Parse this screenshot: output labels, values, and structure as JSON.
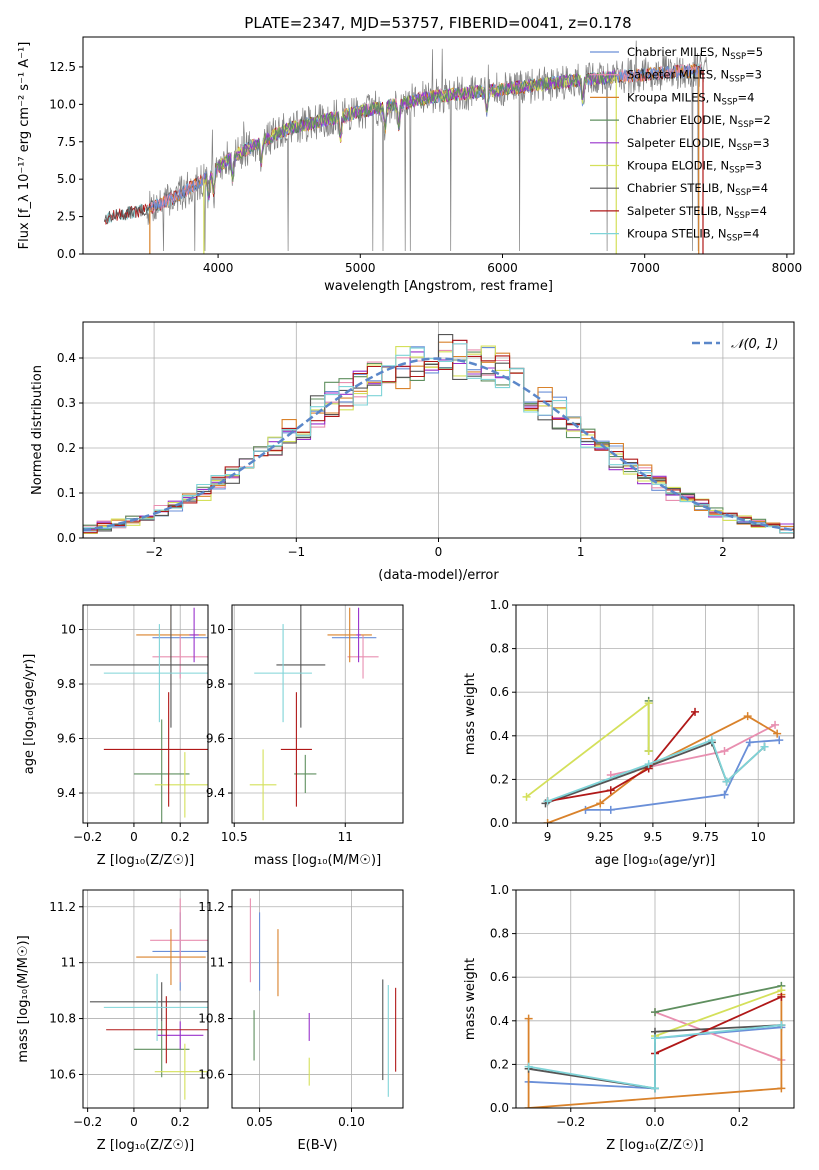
{
  "colors": {
    "chabrier_miles": "#6a8fd8",
    "salpeter_miles": "#e88fb0",
    "kroupa_miles": "#d9822b",
    "chabrier_elodie": "#5f8f5f",
    "salpeter_elodie": "#9932cc",
    "kroupa_elodie": "#d4e05a",
    "chabrier_stelib": "#555555",
    "salpeter_stelib": "#b01818",
    "kroupa_stelib": "#7fd4d8",
    "norm_curve": "#5b87c9",
    "data_spectrum": "#808080"
  },
  "chart_data": [
    {
      "id": "spectrum",
      "type": "line",
      "title": "PLATE=2347, MJD=53757, FIBERID=0041, z=0.178",
      "xlabel": "wavelength [Angstrom, rest frame]",
      "ylabel": "Flux [f_λ 10⁻¹⁷ erg cm⁻² s⁻¹ A⁻¹]",
      "xlim": [
        3050,
        8050
      ],
      "ylim": [
        0,
        14.5
      ],
      "xticks": [
        4000,
        5000,
        6000,
        7000,
        8000
      ],
      "yticks": [
        "0.0",
        "2.5",
        "5.0",
        "7.5",
        "10.0",
        "12.5"
      ],
      "legend_position": "right",
      "legend": [
        {
          "label": "Chabrier MILES, N",
          "sub": "SSP",
          "tail": "=5",
          "color": "chabrier_miles"
        },
        {
          "label": "Salpeter MILES, N",
          "sub": "SSP",
          "tail": "=3",
          "color": "salpeter_miles"
        },
        {
          "label": "Kroupa MILES, N",
          "sub": "SSP",
          "tail": "=4",
          "color": "kroupa_miles"
        },
        {
          "label": "Chabrier ELODIE, N",
          "sub": "SSP",
          "tail": "=2",
          "color": "chabrier_elodie"
        },
        {
          "label": "Salpeter ELODIE, N",
          "sub": "SSP",
          "tail": "=3",
          "color": "salpeter_elodie"
        },
        {
          "label": "Kroupa ELODIE, N",
          "sub": "SSP",
          "tail": "=3",
          "color": "kroupa_elodie"
        },
        {
          "label": "Chabrier STELIB, N",
          "sub": "SSP",
          "tail": "=4",
          "color": "chabrier_stelib"
        },
        {
          "label": "Salpeter STELIB, N",
          "sub": "SSP",
          "tail": "=4",
          "color": "salpeter_stelib"
        },
        {
          "label": "Kroupa STELIB, N",
          "sub": "SSP",
          "tail": "=4",
          "color": "kroupa_stelib"
        }
      ],
      "continuum": {
        "x": [
          3200,
          3500,
          3700,
          3900,
          4100,
          4300,
          4500,
          5000,
          5500,
          6000,
          6500,
          7000,
          7400
        ],
        "y": [
          2.4,
          3.0,
          3.8,
          5.0,
          6.5,
          7.5,
          8.4,
          9.5,
          10.5,
          11.0,
          11.6,
          12.0,
          12.3
        ]
      },
      "model_ranges": {
        "stelib": [
          3200,
          7400
        ],
        "miles": [
          3520,
          7400
        ],
        "elodie": [
          3900,
          6800
        ]
      }
    },
    {
      "id": "residuals",
      "type": "histogram",
      "xlabel": "(data-model)/error",
      "ylabel": "Normed distribution",
      "xlim": [
        -2.5,
        2.5
      ],
      "ylim": [
        0,
        0.48
      ],
      "xticks": [
        "−2",
        "−1",
        "0",
        "1",
        "2"
      ],
      "yticks": [
        "0.0",
        "0.1",
        "0.2",
        "0.3",
        "0.4"
      ],
      "grid": true,
      "bin_width": 0.1,
      "legend": "𝒩(0, 1)",
      "legend_position": "top-right",
      "curve": "normal pdf, mean 0, sigma 1"
    },
    {
      "id": "z_vs_age",
      "type": "scatter",
      "xlabel": "Z [log₁₀(Z/Z☉)]",
      "ylabel": "age  [log₁₀(age/yr)]",
      "xlim": [
        -0.22,
        0.32
      ],
      "ylim": [
        9.29,
        10.09
      ],
      "xticks": [
        -0.2,
        0.0,
        0.2
      ],
      "yticks": [
        9.4,
        9.6,
        9.8,
        10.0
      ],
      "grid": true,
      "points": [
        {
          "c": "chabrier_miles",
          "x": 0.2,
          "y": 9.97,
          "xe": 0.12,
          "ye": 0.0
        },
        {
          "c": "salpeter_miles",
          "x": 0.2,
          "y": 9.9,
          "xe": 0.12,
          "ye": 0.08
        },
        {
          "c": "kroupa_miles",
          "x": 0.16,
          "y": 9.98,
          "xe": 0.15,
          "ye": 0.1
        },
        {
          "c": "chabrier_elodie",
          "x": 0.12,
          "y": 9.47,
          "xe": 0.12,
          "ye": 0.2
        },
        {
          "c": "salpeter_elodie",
          "x": 0.26,
          "y": 9.98,
          "xe": 0.02,
          "ye": 0.1
        },
        {
          "c": "kroupa_elodie",
          "x": 0.22,
          "y": 9.43,
          "xe": 0.13,
          "ye": 0.12
        },
        {
          "c": "chabrier_stelib",
          "x": 0.16,
          "y": 9.87,
          "xe": 0.35,
          "ye": 0.23
        },
        {
          "c": "salpeter_stelib",
          "x": 0.15,
          "y": 9.56,
          "xe": 0.28,
          "ye": 0.21
        },
        {
          "c": "kroupa_stelib",
          "x": 0.11,
          "y": 9.84,
          "xe": 0.24,
          "ye": 0.18
        }
      ]
    },
    {
      "id": "mass_vs_age",
      "type": "scatter",
      "xlabel": "mass [log₁₀(M/M☉)]",
      "ylabel": "",
      "xlim": [
        10.49,
        11.26
      ],
      "ylim": [
        9.29,
        10.09
      ],
      "xticks": [
        10.5,
        11.0
      ],
      "yticks": [
        9.4,
        9.6,
        9.8,
        10.0
      ],
      "grid": true,
      "points": [
        {
          "c": "chabrier_miles",
          "x": 11.04,
          "y": 9.97,
          "xe": 0.1,
          "ye": 0.0
        },
        {
          "c": "salpeter_miles",
          "x": 11.08,
          "y": 9.9,
          "xe": 0.07,
          "ye": 0.08
        },
        {
          "c": "kroupa_miles",
          "x": 11.02,
          "y": 9.98,
          "xe": 0.1,
          "ye": 0.1
        },
        {
          "c": "chabrier_elodie",
          "x": 10.82,
          "y": 9.47,
          "xe": 0.05,
          "ye": 0.07
        },
        {
          "c": "salpeter_elodie",
          "x": 11.06,
          "y": 9.98,
          "xe": 0.01,
          "ye": 0.1
        },
        {
          "c": "kroupa_elodie",
          "x": 10.63,
          "y": 9.43,
          "xe": 0.06,
          "ye": 0.13
        },
        {
          "c": "chabrier_stelib",
          "x": 10.8,
          "y": 9.87,
          "xe": 0.11,
          "ye": 0.23
        },
        {
          "c": "salpeter_stelib",
          "x": 10.78,
          "y": 9.56,
          "xe": 0.07,
          "ye": 0.21
        },
        {
          "c": "kroupa_stelib",
          "x": 10.72,
          "y": 9.84,
          "xe": 0.13,
          "ye": 0.18
        }
      ]
    },
    {
      "id": "age_weights",
      "type": "line",
      "xlabel": "age  [log₁₀(age/yr)]",
      "ylabel": "mass weight",
      "xlim": [
        8.85,
        10.17
      ],
      "ylim": [
        0,
        1.0
      ],
      "xticks": [
        9.0,
        9.25,
        9.5,
        9.75,
        10.0
      ],
      "yticks": [
        "0.0",
        "0.2",
        "0.4",
        "0.6",
        "0.8",
        "1.0"
      ],
      "grid": true,
      "series": [
        {
          "c": "chabrier_miles",
          "x": [
            9.18,
            9.3,
            9.84,
            9.96,
            10.1
          ],
          "y": [
            0.06,
            0.06,
            0.13,
            0.37,
            0.38
          ]
        },
        {
          "c": "salpeter_miles",
          "x": [
            9.3,
            9.84,
            10.08
          ],
          "y": [
            0.22,
            0.33,
            0.45
          ]
        },
        {
          "c": "kroupa_miles",
          "x": [
            9.0,
            9.25,
            9.48,
            9.95,
            10.09
          ],
          "y": [
            0.0,
            0.09,
            0.26,
            0.49,
            0.41
          ]
        },
        {
          "c": "chabrier_elodie",
          "x": [
            9.48,
            9.48
          ],
          "y": [
            0.33,
            0.56
          ]
        },
        {
          "c": "kroupa_elodie",
          "x": [
            8.9,
            9.48,
            9.48
          ],
          "y": [
            0.12,
            0.55,
            0.33
          ]
        },
        {
          "c": "chabrier_stelib",
          "x": [
            8.99,
            9.48,
            9.78,
            9.85,
            10.03
          ],
          "y": [
            0.09,
            0.26,
            0.37,
            0.19,
            0.35
          ]
        },
        {
          "c": "salpeter_stelib",
          "x": [
            9.0,
            9.3,
            9.48,
            9.7
          ],
          "y": [
            0.1,
            0.15,
            0.25,
            0.51
          ]
        },
        {
          "c": "kroupa_stelib",
          "x": [
            9.0,
            9.48,
            9.78,
            9.85,
            10.03
          ],
          "y": [
            0.1,
            0.27,
            0.38,
            0.19,
            0.35
          ]
        }
      ]
    },
    {
      "id": "z_vs_mass",
      "type": "scatter",
      "xlabel": "Z [log₁₀(Z/Z☉)]",
      "ylabel": "mass [log₁₀(M/M☉)]",
      "xlim": [
        -0.22,
        0.32
      ],
      "ylim": [
        10.48,
        11.26
      ],
      "xticks": [
        -0.2,
        0.0,
        0.2
      ],
      "yticks": [
        10.6,
        10.8,
        11.0,
        11.2
      ],
      "grid": true,
      "points": [
        {
          "c": "chabrier_miles",
          "x": 0.2,
          "y": 11.04,
          "xe": 0.12,
          "ye": 0.14
        },
        {
          "c": "salpeter_miles",
          "x": 0.2,
          "y": 11.08,
          "xe": 0.13,
          "ye": 0.15
        },
        {
          "c": "kroupa_miles",
          "x": 0.16,
          "y": 11.02,
          "xe": 0.15,
          "ye": 0.1
        },
        {
          "c": "chabrier_elodie",
          "x": 0.12,
          "y": 10.69,
          "xe": 0.12,
          "ye": 0.1
        },
        {
          "c": "salpeter_elodie",
          "x": 0.2,
          "y": 10.74,
          "xe": 0.1,
          "ye": 0.05
        },
        {
          "c": "kroupa_elodie",
          "x": 0.22,
          "y": 10.61,
          "xe": 0.13,
          "ye": 0.1
        },
        {
          "c": "chabrier_stelib",
          "x": 0.12,
          "y": 10.86,
          "xe": 0.31,
          "ye": 0.07
        },
        {
          "c": "salpeter_stelib",
          "x": 0.14,
          "y": 10.76,
          "xe": 0.26,
          "ye": 0.12
        },
        {
          "c": "kroupa_stelib",
          "x": 0.1,
          "y": 10.84,
          "xe": 0.23,
          "ye": 0.12
        }
      ]
    },
    {
      "id": "ebv_vs_mass",
      "type": "scatter",
      "xlabel": "E(B-V)",
      "ylabel": "",
      "xlim": [
        0.035,
        0.128
      ],
      "ylim": [
        10.48,
        11.26
      ],
      "xticks": [
        "0.05",
        "0.10"
      ],
      "yticks": [
        10.6,
        10.8,
        11.0,
        11.2
      ],
      "grid": true,
      "points": [
        {
          "c": "chabrier_miles",
          "x": 0.05,
          "y": 11.04,
          "xe": 0.0,
          "ye": 0.14
        },
        {
          "c": "salpeter_miles",
          "x": 0.045,
          "y": 11.08,
          "xe": 0.0,
          "ye": 0.15
        },
        {
          "c": "kroupa_miles",
          "x": 0.06,
          "y": 11.0,
          "xe": 0.0,
          "ye": 0.12
        },
        {
          "c": "chabrier_elodie",
          "x": 0.047,
          "y": 10.74,
          "xe": 0.0,
          "ye": 0.09
        },
        {
          "c": "salpeter_elodie",
          "x": 0.077,
          "y": 10.77,
          "xe": 0.0,
          "ye": 0.05
        },
        {
          "c": "kroupa_elodie",
          "x": 0.077,
          "y": 10.61,
          "xe": 0.0,
          "ye": 0.05
        },
        {
          "c": "chabrier_stelib",
          "x": 0.117,
          "y": 10.76,
          "xe": 0.0,
          "ye": 0.18
        },
        {
          "c": "salpeter_stelib",
          "x": 0.124,
          "y": 10.76,
          "xe": 0.0,
          "ye": 0.15
        },
        {
          "c": "kroupa_stelib",
          "x": 0.12,
          "y": 10.72,
          "xe": 0.0,
          "ye": 0.2
        }
      ]
    },
    {
      "id": "z_weights",
      "type": "line",
      "xlabel": "Z [log₁₀(Z/Z☉)]",
      "ylabel": "mass weight",
      "xlim": [
        -0.33,
        0.33
      ],
      "ylim": [
        0,
        1.0
      ],
      "xticks": [
        "−0.2",
        "0.0",
        "0.2"
      ],
      "yticks": [
        "0.0",
        "0.2",
        "0.4",
        "0.6",
        "0.8",
        "1.0"
      ],
      "grid": true,
      "series": [
        {
          "c": "chabrier_miles",
          "x": [
            -0.3,
            0.0,
            0.0,
            0.3
          ],
          "y": [
            0.12,
            0.09,
            0.32,
            0.37
          ]
        },
        {
          "c": "salpeter_miles",
          "x": [
            0.0,
            0.3
          ],
          "y": [
            0.44,
            0.22
          ]
        },
        {
          "c": "kroupa_miles",
          "x": [
            -0.3,
            -0.3,
            0.3,
            0.3
          ],
          "y": [
            0.41,
            0.0,
            0.09,
            0.52
          ]
        },
        {
          "c": "chabrier_elodie",
          "x": [
            0.0,
            0.3
          ],
          "y": [
            0.44,
            0.56
          ]
        },
        {
          "c": "kroupa_elodie",
          "x": [
            0.0,
            0.3
          ],
          "y": [
            0.33,
            0.54
          ]
        },
        {
          "c": "chabrier_stelib",
          "x": [
            -0.3,
            0.0,
            0.0,
            0.3
          ],
          "y": [
            0.18,
            0.09,
            0.35,
            0.38
          ]
        },
        {
          "c": "salpeter_stelib",
          "x": [
            0.0,
            0.3
          ],
          "y": [
            0.25,
            0.51
          ]
        },
        {
          "c": "kroupa_stelib",
          "x": [
            -0.3,
            0.0,
            0.0,
            0.3
          ],
          "y": [
            0.19,
            0.09,
            0.32,
            0.38
          ]
        }
      ]
    }
  ]
}
